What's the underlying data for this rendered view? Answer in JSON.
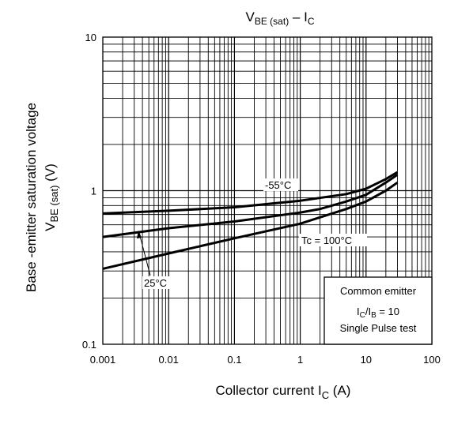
{
  "chart_data": {
    "type": "line",
    "title": {
      "main": "V",
      "sub": "BE (sat)",
      "rest": " – I",
      "sub2": "C"
    },
    "xlabel": {
      "text": "Collector current   I",
      "sub": "C",
      "unit": "   (A)"
    },
    "ylabel": {
      "line1": "Base -emitter saturation voltage",
      "main": "V",
      "sub": "BE (sat)",
      "unit": "    (V)"
    },
    "xscale": "log",
    "yscale": "log",
    "xlim": [
      0.001,
      100
    ],
    "ylim": [
      0.1,
      10
    ],
    "grid": true,
    "x_ticks": [
      {
        "value": 0.001,
        "label": "0.001"
      },
      {
        "value": 0.01,
        "label": "0.01"
      },
      {
        "value": 0.1,
        "label": "0.1"
      },
      {
        "value": 1,
        "label": "1"
      },
      {
        "value": 10,
        "label": "10"
      },
      {
        "value": 100,
        "label": "100"
      }
    ],
    "y_ticks": [
      {
        "value": 0.1,
        "label": "0.1"
      },
      {
        "value": 1,
        "label": "1"
      },
      {
        "value": 10,
        "label": "10"
      }
    ],
    "series": [
      {
        "name": "-55°C",
        "points": [
          [
            0.001,
            0.71
          ],
          [
            0.01,
            0.74
          ],
          [
            0.1,
            0.78
          ],
          [
            1,
            0.86
          ],
          [
            5,
            0.95
          ],
          [
            10,
            1.03
          ],
          [
            20,
            1.19
          ],
          [
            30,
            1.32
          ]
        ]
      },
      {
        "name": "25°C",
        "points": [
          [
            0.001,
            0.5
          ],
          [
            0.01,
            0.57
          ],
          [
            0.1,
            0.63
          ],
          [
            1,
            0.72
          ],
          [
            2,
            0.76
          ],
          [
            5,
            0.85
          ],
          [
            10,
            0.94
          ],
          [
            20,
            1.13
          ],
          [
            30,
            1.27
          ]
        ]
      },
      {
        "name": "Tc = 100°C",
        "points": [
          [
            0.001,
            0.31
          ],
          [
            0.01,
            0.39
          ],
          [
            0.1,
            0.49
          ],
          [
            1,
            0.61
          ],
          [
            5,
            0.76
          ],
          [
            10,
            0.85
          ],
          [
            20,
            1.0
          ],
          [
            30,
            1.13
          ]
        ]
      }
    ],
    "annotations": {
      "label_m55": "-55°C",
      "label_100": "Tc = 100°C",
      "label_25": "25°C"
    },
    "infobox": {
      "line1": "Common emitter",
      "line2": {
        "a": "I",
        "a_sub": "C",
        "b": "/I",
        "b_sub": "B",
        "c": " = 10"
      },
      "line3": "Single Pulse test"
    }
  }
}
